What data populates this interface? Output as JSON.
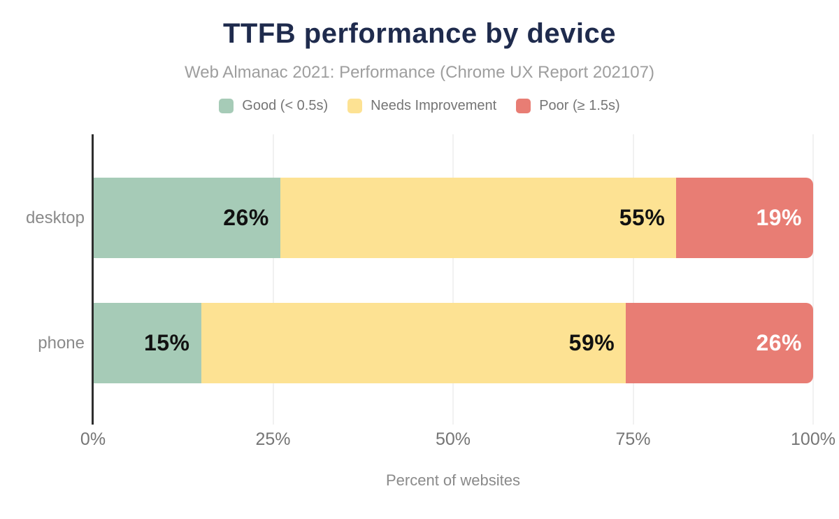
{
  "title": "TTFB performance by device",
  "subtitle": "Web Almanac 2021: Performance (Chrome UX Report 202107)",
  "colors": {
    "background": "#ffffff",
    "title_text": "#1f2b4d",
    "subtitle_text": "#9e9e9e",
    "legend_text": "#757575",
    "axis_line": "#2e2e2e",
    "gridline": "#f1f1f1",
    "tick_text": "#757575",
    "category_text": "#8a8a8a"
  },
  "chart_data": {
    "type": "bar",
    "orientation": "horizontal",
    "stacked": true,
    "title": "TTFB performance by device",
    "subtitle": "Web Almanac 2021: Performance (Chrome UX Report 202107)",
    "categories": [
      "desktop",
      "phone"
    ],
    "series": [
      {
        "name": "Good (< 0.5s)",
        "color": "#a6cbb7",
        "value_label_color": "#111111",
        "values": [
          26,
          15
        ]
      },
      {
        "name": "Needs Improvement",
        "color": "#fde293",
        "value_label_color": "#111111",
        "values": [
          55,
          59
        ]
      },
      {
        "name": "Poor (≥ 1.5s)",
        "color": "#e87d74",
        "value_label_color": "#ffffff",
        "values": [
          19,
          26
        ]
      }
    ],
    "value_suffix": "%",
    "xlabel": "Percent of websites",
    "ylabel": "",
    "xlim": [
      0,
      100
    ],
    "x_ticks": [
      {
        "value": 0,
        "label": "0%"
      },
      {
        "value": 25,
        "label": "25%"
      },
      {
        "value": 50,
        "label": "50%"
      },
      {
        "value": 75,
        "label": "75%"
      },
      {
        "value": 100,
        "label": "100%"
      }
    ],
    "grid": true,
    "legend_position": "top"
  }
}
